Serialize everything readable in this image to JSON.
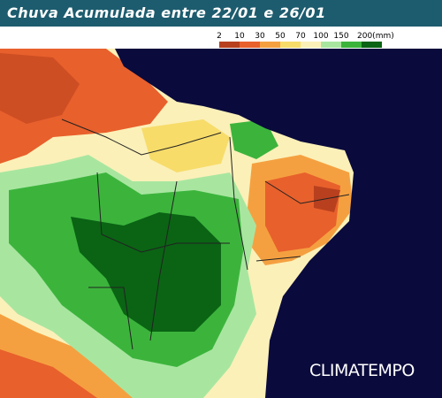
{
  "header": {
    "title": "Chuva Acumulada entre 22/01 e 26/01"
  },
  "legend": {
    "labels": [
      "2",
      "10",
      "30",
      "50",
      "70",
      "100",
      "150",
      "200(mm)"
    ],
    "colors": [
      "#ffffff",
      "#b8401e",
      "#e8602c",
      "#f5a040",
      "#f7dc6a",
      "#fbf0b8",
      "#a8e6a0",
      "#3cb43c",
      "#0a6414"
    ]
  },
  "watermark": "CLIMATEMPO"
}
